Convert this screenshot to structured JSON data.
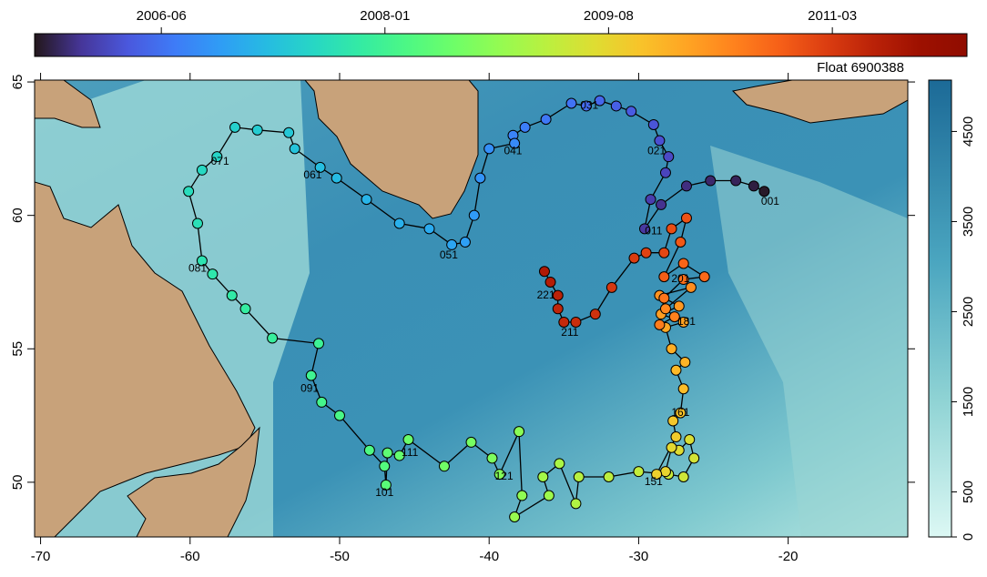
{
  "map": {
    "title": "Float 6900388",
    "xlim": [
      -70.4,
      -12
    ],
    "ylim": [
      47.95,
      65.07
    ],
    "xticks": [
      -70,
      -60,
      -50,
      -40,
      -30,
      -20
    ],
    "yticks": [
      50,
      55,
      60,
      65
    ],
    "time_colorbar": {
      "lim": [
        2005.52,
        2012.12
      ],
      "ticks": [
        {
          "value": 2006.417,
          "label": "2006-06"
        },
        {
          "value": 2008.0,
          "label": "2008-01"
        },
        {
          "value": 2009.583,
          "label": "2009-08"
        },
        {
          "value": 2011.167,
          "label": "2011-03"
        }
      ]
    },
    "depth_colorbar": {
      "lim": [
        0,
        5070
      ],
      "ticks": [
        0,
        500,
        1500,
        2500,
        3500,
        4500
      ]
    },
    "track": {
      "lon": [
        -21.6,
        -22.3,
        -23.5,
        -25.2,
        -26.8,
        -28.5,
        -29.6,
        -29.2,
        -28.2,
        -28.0,
        -28.6,
        -29.0,
        -30.5,
        -31.5,
        -32.6,
        -33.5,
        -34.5,
        -36.2,
        -37.6,
        -38.4,
        -38.3,
        -40.0,
        -40.6,
        -41.0,
        -41.6,
        -42.5,
        -44.0,
        -46.0,
        -48.2,
        -50.2,
        -51.3,
        -53.0,
        -53.4,
        -55.5,
        -57.0,
        -58.2,
        -59.2,
        -60.1,
        -59.5,
        -59.2,
        -58.5,
        -57.2,
        -56.3,
        -54.5,
        -51.4,
        -51.9,
        -51.2,
        -50.0,
        -48.0,
        -47.0,
        -46.9,
        -46.8,
        -46.0,
        -45.4,
        -43.0,
        -41.2,
        -39.8,
        -39.3,
        -38.0,
        -37.8,
        -38.3,
        -36.0,
        -36.4,
        -35.3,
        -34.2,
        -34.0,
        -32.0,
        -30.0,
        -28.0,
        -27.0,
        -26.3,
        -26.6,
        -27.3,
        -27.8,
        -28.2,
        -28.8,
        -27.5,
        -27.7,
        -27.2,
        -27.0,
        -27.5,
        -26.9,
        -27.8,
        -28.2,
        -27.0,
        -28.5,
        -27.3,
        -28.6,
        -26.5,
        -28.2,
        -27.6,
        -28.6,
        -28.3,
        -27.0,
        -25.6,
        -27.0,
        -28.3,
        -27.2,
        -26.8,
        -27.8,
        -28.3,
        -29.5,
        -30.3,
        -31.8,
        -32.9,
        -34.2,
        -35.0,
        -35.4,
        -35.4,
        -35.9,
        -36.3
      ],
      "lat": [
        60.9,
        61.1,
        61.3,
        61.3,
        61.1,
        60.4,
        59.5,
        60.6,
        61.6,
        62.2,
        62.8,
        63.4,
        63.9,
        64.1,
        64.3,
        64.1,
        64.2,
        63.6,
        63.3,
        63.0,
        62.7,
        62.5,
        61.4,
        60.0,
        59.0,
        58.9,
        59.5,
        59.7,
        60.6,
        61.4,
        61.8,
        62.5,
        63.1,
        63.2,
        63.3,
        62.2,
        61.7,
        60.9,
        59.7,
        58.3,
        57.8,
        57.0,
        56.5,
        55.4,
        55.2,
        54.0,
        53.0,
        52.5,
        51.2,
        50.6,
        49.9,
        51.1,
        51.0,
        51.6,
        50.6,
        51.5,
        50.9,
        50.3,
        51.9,
        49.5,
        48.7,
        49.5,
        50.2,
        50.7,
        49.2,
        50.2,
        50.2,
        50.4,
        50.3,
        50.2,
        50.9,
        51.6,
        51.2,
        51.3,
        50.4,
        50.3,
        51.7,
        52.3,
        52.6,
        53.5,
        54.2,
        54.5,
        55.0,
        55.8,
        56.0,
        56.3,
        56.6,
        57.0,
        57.3,
        56.5,
        56.2,
        55.9,
        56.9,
        57.6,
        57.7,
        58.2,
        57.7,
        59.0,
        59.9,
        59.5,
        58.6,
        58.6,
        58.4,
        57.3,
        56.3,
        56.0,
        56.0,
        56.5,
        57.0,
        57.5,
        57.9
      ],
      "t": [
        2005.55,
        2005.6,
        2005.66,
        2005.71,
        2005.77,
        2005.82,
        2005.88,
        2005.93,
        2005.99,
        2006.04,
        2006.1,
        2006.15,
        2006.21,
        2006.26,
        2006.32,
        2006.37,
        2006.43,
        2006.48,
        2006.54,
        2006.59,
        2006.65,
        2006.7,
        2006.75,
        2006.81,
        2006.86,
        2006.92,
        2006.97,
        2007.03,
        2007.08,
        2007.14,
        2007.19,
        2007.25,
        2007.3,
        2007.36,
        2007.41,
        2007.47,
        2007.52,
        2007.58,
        2007.63,
        2007.69,
        2007.74,
        2007.8,
        2007.85,
        2007.9,
        2007.96,
        2008.01,
        2008.07,
        2008.12,
        2008.18,
        2008.23,
        2008.29,
        2008.34,
        2008.4,
        2008.45,
        2008.51,
        2008.56,
        2008.62,
        2008.67,
        2008.73,
        2008.78,
        2008.84,
        2008.89,
        2008.95,
        2009.0,
        2009.06,
        2009.11,
        2009.16,
        2009.22,
        2009.27,
        2009.33,
        2009.38,
        2009.44,
        2009.49,
        2009.55,
        2009.6,
        2009.66,
        2009.71,
        2009.77,
        2009.82,
        2009.88,
        2009.93,
        2009.99,
        2010.04,
        2010.1,
        2010.15,
        2010.2,
        2010.26,
        2010.31,
        2010.37,
        2010.42,
        2010.48,
        2010.53,
        2010.59,
        2010.64,
        2010.7,
        2010.75,
        2010.81,
        2010.86,
        2010.92,
        2010.97,
        2011.03,
        2011.08,
        2011.14,
        2011.19,
        2011.25,
        2011.3,
        2011.36,
        2011.41,
        2011.46,
        2011.52,
        2011.57
      ]
    },
    "labels": [
      {
        "text": "001",
        "lon": -21.2,
        "lat": 60.5
      },
      {
        "text": "011",
        "lon": -29.0,
        "lat": 59.4
      },
      {
        "text": "021",
        "lon": -28.8,
        "lat": 62.4
      },
      {
        "text": "031",
        "lon": -33.3,
        "lat": 64.1
      },
      {
        "text": "041",
        "lon": -38.4,
        "lat": 62.4
      },
      {
        "text": "051",
        "lon": -42.7,
        "lat": 58.5
      },
      {
        "text": "061",
        "lon": -51.8,
        "lat": 61.5
      },
      {
        "text": "071",
        "lon": -58.0,
        "lat": 62.0
      },
      {
        "text": "081",
        "lon": -59.5,
        "lat": 58.0
      },
      {
        "text": "091",
        "lon": -52.0,
        "lat": 53.5
      },
      {
        "text": "101",
        "lon": -47.0,
        "lat": 49.6
      },
      {
        "text": "111",
        "lon": -45.3,
        "lat": 51.1
      },
      {
        "text": "121",
        "lon": -39.0,
        "lat": 50.2
      },
      {
        "text": "151",
        "lon": -29.0,
        "lat": 50.0
      },
      {
        "text": "161",
        "lon": -27.2,
        "lat": 52.6
      },
      {
        "text": "181",
        "lon": -26.8,
        "lat": 56.0
      },
      {
        "text": "201",
        "lon": -27.2,
        "lat": 57.6
      },
      {
        "text": "211",
        "lon": -34.6,
        "lat": 55.6
      },
      {
        "text": "221",
        "lon": -36.2,
        "lat": 57.0
      }
    ]
  }
}
